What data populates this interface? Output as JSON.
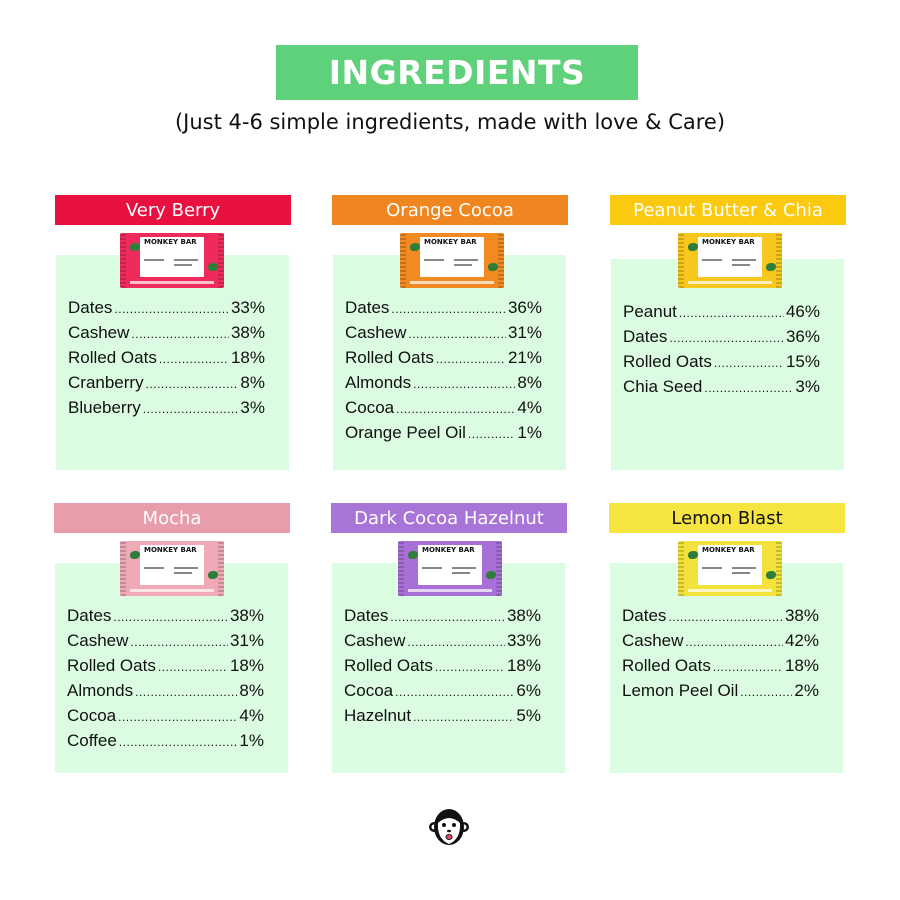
{
  "header": {
    "title": "INGREDIENTS",
    "subtitle": "(Just 4-6 simple ingredients, made with love & Care)"
  },
  "package_brand": "MONKEY BAR",
  "cards": [
    {
      "name": "Very Berry",
      "header_color": "#e8103f",
      "header_text_color": "#ffffff",
      "pack_color": "#ef2b5b",
      "ingredients": [
        {
          "name": "Dates",
          "pct": "33%"
        },
        {
          "name": "Cashew",
          "pct": "38%"
        },
        {
          "name": "Rolled Oats",
          "pct": "18%"
        },
        {
          "name": "Cranberry",
          "pct": "8%"
        },
        {
          "name": "Blueberry",
          "pct": "3%"
        }
      ]
    },
    {
      "name": "Orange Cocoa",
      "header_color": "#f0861f",
      "header_text_color": "#ffffff",
      "pack_color": "#f28a22",
      "ingredients": [
        {
          "name": "Dates",
          "pct": "36%"
        },
        {
          "name": "Cashew",
          "pct": "31%"
        },
        {
          "name": "Rolled Oats",
          "pct": "21%"
        },
        {
          "name": "Almonds",
          "pct": "8%"
        },
        {
          "name": "Cocoa",
          "pct": "4%"
        },
        {
          "name": "Orange Peel Oil",
          "pct": "1%"
        }
      ]
    },
    {
      "name": "Peanut Butter & Chia",
      "header_color": "#fbc90f",
      "header_text_color": "#ffffff",
      "pack_color": "#f7c71e",
      "ingredients": [
        {
          "name": "Peanut",
          "pct": "46%"
        },
        {
          "name": "Dates",
          "pct": "36%"
        },
        {
          "name": "Rolled Oats",
          "pct": "15%"
        },
        {
          "name": "Chia Seed",
          "pct": "3%"
        }
      ]
    },
    {
      "name": "Mocha",
      "header_color": "#e89daa",
      "header_text_color": "#ffffff",
      "pack_color": "#f0a9b6",
      "ingredients": [
        {
          "name": "Dates",
          "pct": "38%"
        },
        {
          "name": "Cashew",
          "pct": "31%"
        },
        {
          "name": "Rolled Oats",
          "pct": "18%"
        },
        {
          "name": "Almonds",
          "pct": "8%"
        },
        {
          "name": "Cocoa",
          "pct": "4%"
        },
        {
          "name": "Coffee",
          "pct": "1%"
        }
      ]
    },
    {
      "name": "Dark Cocoa Hazelnut",
      "header_color": "#a874d8",
      "header_text_color": "#ffffff",
      "pack_color": "#a86fd6",
      "ingredients": [
        {
          "name": "Dates",
          "pct": "38%"
        },
        {
          "name": "Cashew",
          "pct": "33%"
        },
        {
          "name": "Rolled Oats",
          "pct": "18%"
        },
        {
          "name": "Cocoa",
          "pct": "6%"
        },
        {
          "name": "Hazelnut",
          "pct": "5%"
        }
      ]
    },
    {
      "name": "Lemon Blast",
      "header_color": "#f6e541",
      "header_text_color": "#111111",
      "pack_color": "#f4e23c",
      "ingredients": [
        {
          "name": "Dates",
          "pct": "38%"
        },
        {
          "name": "Cashew",
          "pct": "42%"
        },
        {
          "name": "Rolled Oats",
          "pct": "18%"
        },
        {
          "name": "Lemon Peel Oil",
          "pct": "2%"
        }
      ]
    }
  ]
}
